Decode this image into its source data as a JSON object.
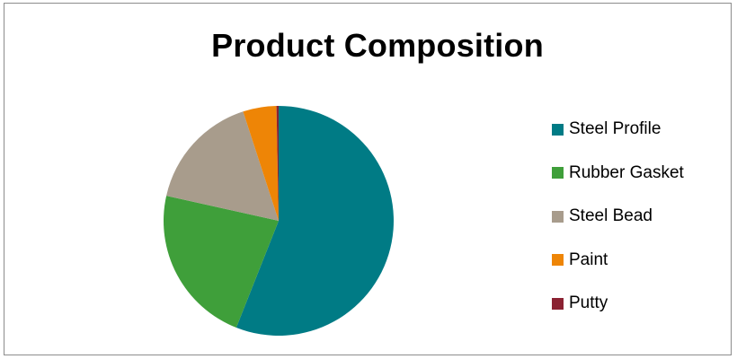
{
  "chart_data": {
    "type": "pie",
    "title": "Product Composition",
    "legend_position": "right",
    "slices": [
      {
        "label": "Steel Profile",
        "value": 56,
        "color": "#007b85"
      },
      {
        "label": "Rubber Gasket",
        "value": 22.5,
        "color": "#3f9f3a"
      },
      {
        "label": "Steel Bead",
        "value": 16.5,
        "color": "#a89c8c"
      },
      {
        "label": "Paint",
        "value": 4.7,
        "color": "#ee8506"
      },
      {
        "label": "Putty",
        "value": 0.3,
        "color": "#8b2232"
      }
    ]
  }
}
